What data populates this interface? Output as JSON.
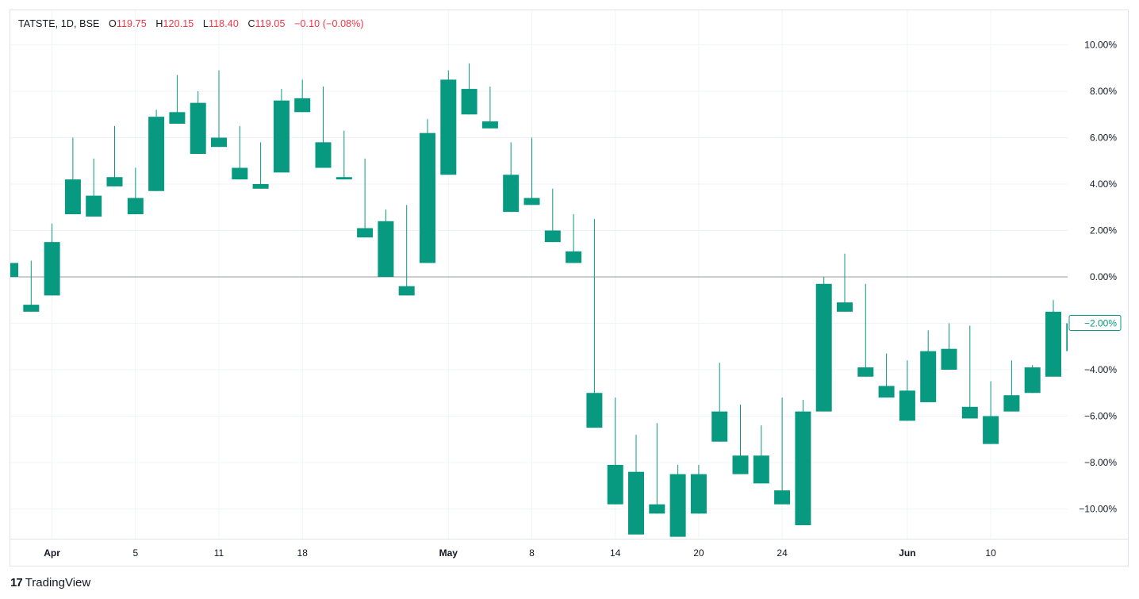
{
  "legend": {
    "symbol": "TATSTE, 1D, BSE",
    "o_label": "O",
    "o_value": "119.75",
    "h_label": "H",
    "h_value": "120.15",
    "l_label": "L",
    "l_value": "118.40",
    "c_label": "C",
    "c_value": "119.05",
    "change": "−0.10 (−0.08%)"
  },
  "footer": {
    "logo": "17",
    "brand": "TradingView"
  },
  "colors": {
    "up": "#089981",
    "grid": "#f0f3fa",
    "baseline": "#9598a1",
    "badge": "#089981"
  },
  "chart_data": {
    "type": "candlestick",
    "yaxis": {
      "unit": "%",
      "ticks": [
        "10.00%",
        "8.00%",
        "6.00%",
        "4.00%",
        "2.00%",
        "0.00%",
        "−2.00%",
        "−4.00%",
        "−6.00%",
        "−8.00%",
        "−10.00%"
      ],
      "tick_values": [
        10,
        8,
        6,
        4,
        2,
        0,
        -2,
        -4,
        -6,
        -8,
        -10
      ],
      "ylim": [
        -11.2,
        10.9
      ],
      "baseline": 0
    },
    "xaxis": {
      "labels": [
        {
          "text": "Apr",
          "index": 2,
          "bold": true
        },
        {
          "text": "5",
          "index": 6,
          "bold": false
        },
        {
          "text": "11",
          "index": 10,
          "bold": false
        },
        {
          "text": "18",
          "index": 14,
          "bold": false
        },
        {
          "text": "May",
          "index": 21,
          "bold": true
        },
        {
          "text": "8",
          "index": 25,
          "bold": false
        },
        {
          "text": "14",
          "index": 29,
          "bold": false
        },
        {
          "text": "20",
          "index": 33,
          "bold": false
        },
        {
          "text": "24",
          "index": 37,
          "bold": false
        },
        {
          "text": "Jun",
          "index": 43,
          "bold": true
        },
        {
          "text": "10",
          "index": 47,
          "bold": false
        }
      ]
    },
    "last_value_badge": "−2.00%",
    "candles": [
      {
        "o": 0.6,
        "h": 0.6,
        "l": 0.0,
        "c": 0.0
      },
      {
        "o": -1.2,
        "h": 0.7,
        "l": -1.5,
        "c": -1.5
      },
      {
        "o": -0.8,
        "h": 2.3,
        "l": -0.8,
        "c": 1.5
      },
      {
        "o": 2.7,
        "h": 6.0,
        "l": 2.7,
        "c": 4.2
      },
      {
        "o": 2.6,
        "h": 5.1,
        "l": 2.6,
        "c": 3.5
      },
      {
        "o": 3.9,
        "h": 6.5,
        "l": 3.9,
        "c": 4.3
      },
      {
        "o": 2.7,
        "h": 4.7,
        "l": 2.7,
        "c": 3.4
      },
      {
        "o": 3.7,
        "h": 7.2,
        "l": 3.7,
        "c": 6.9
      },
      {
        "o": 6.6,
        "h": 8.7,
        "l": 6.6,
        "c": 7.1
      },
      {
        "o": 5.3,
        "h": 8.0,
        "l": 5.3,
        "c": 7.5
      },
      {
        "o": 5.6,
        "h": 8.9,
        "l": 5.6,
        "c": 6.0
      },
      {
        "o": 4.2,
        "h": 6.5,
        "l": 4.2,
        "c": 4.7
      },
      {
        "o": 3.8,
        "h": 5.8,
        "l": 3.8,
        "c": 4.0
      },
      {
        "o": 4.5,
        "h": 8.1,
        "l": 4.5,
        "c": 7.6
      },
      {
        "o": 7.1,
        "h": 8.5,
        "l": 7.1,
        "c": 7.7
      },
      {
        "o": 4.7,
        "h": 8.2,
        "l": 4.7,
        "c": 5.8
      },
      {
        "o": 4.2,
        "h": 6.3,
        "l": 4.2,
        "c": 4.3
      },
      {
        "o": 1.7,
        "h": 5.1,
        "l": 1.7,
        "c": 2.1
      },
      {
        "o": 0.0,
        "h": 2.9,
        "l": 0.0,
        "c": 2.4
      },
      {
        "o": -0.8,
        "h": 3.1,
        "l": -0.8,
        "c": -0.4
      },
      {
        "o": 0.6,
        "h": 6.8,
        "l": 0.6,
        "c": 6.2
      },
      {
        "o": 4.4,
        "h": 8.9,
        "l": 4.4,
        "c": 8.5
      },
      {
        "o": 7.0,
        "h": 9.2,
        "l": 7.0,
        "c": 8.1
      },
      {
        "o": 6.4,
        "h": 8.2,
        "l": 6.4,
        "c": 6.7
      },
      {
        "o": 2.8,
        "h": 5.8,
        "l": 2.8,
        "c": 4.4
      },
      {
        "o": 3.1,
        "h": 6.0,
        "l": 3.1,
        "c": 3.4
      },
      {
        "o": 1.5,
        "h": 3.8,
        "l": 1.5,
        "c": 2.0
      },
      {
        "o": 0.6,
        "h": 2.7,
        "l": 0.6,
        "c": 1.1
      },
      {
        "o": -6.5,
        "h": 2.5,
        "l": -6.5,
        "c": -5.0
      },
      {
        "o": -9.8,
        "h": -5.2,
        "l": -9.8,
        "c": -8.1
      },
      {
        "o": -11.1,
        "h": -6.8,
        "l": -11.1,
        "c": -8.4
      },
      {
        "o": -10.2,
        "h": -6.3,
        "l": -10.2,
        "c": -9.8
      },
      {
        "o": -11.2,
        "h": -8.1,
        "l": -11.2,
        "c": -8.5
      },
      {
        "o": -10.2,
        "h": -8.1,
        "l": -10.2,
        "c": -8.5
      },
      {
        "o": -7.1,
        "h": -3.7,
        "l": -7.1,
        "c": -5.8
      },
      {
        "o": -8.5,
        "h": -5.5,
        "l": -8.5,
        "c": -7.7
      },
      {
        "o": -8.9,
        "h": -6.4,
        "l": -8.9,
        "c": -7.7
      },
      {
        "o": -9.8,
        "h": -5.2,
        "l": -9.8,
        "c": -9.2
      },
      {
        "o": -10.7,
        "h": -5.3,
        "l": -10.7,
        "c": -5.8
      },
      {
        "o": -5.8,
        "h": 0.0,
        "l": -5.8,
        "c": -0.3
      },
      {
        "o": -1.5,
        "h": 1.0,
        "l": -1.5,
        "c": -1.1
      },
      {
        "o": -4.3,
        "h": -0.3,
        "l": -4.3,
        "c": -3.9
      },
      {
        "o": -5.2,
        "h": -3.3,
        "l": -5.2,
        "c": -4.7
      },
      {
        "o": -6.2,
        "h": -3.6,
        "l": -6.2,
        "c": -4.9
      },
      {
        "o": -5.4,
        "h": -2.3,
        "l": -5.4,
        "c": -3.2
      },
      {
        "o": -4.0,
        "h": -2.0,
        "l": -4.0,
        "c": -3.1
      },
      {
        "o": -6.1,
        "h": -2.1,
        "l": -6.1,
        "c": -5.6
      },
      {
        "o": -7.2,
        "h": -4.5,
        "l": -7.2,
        "c": -6.0
      },
      {
        "o": -5.8,
        "h": -3.6,
        "l": -5.8,
        "c": -5.1
      },
      {
        "o": -5.0,
        "h": -3.8,
        "l": -5.0,
        "c": -3.9
      },
      {
        "o": -4.3,
        "h": -1.0,
        "l": -4.3,
        "c": -1.5
      },
      {
        "o": -3.2,
        "h": -2.0,
        "l": -3.2,
        "c": -2.0
      }
    ]
  }
}
